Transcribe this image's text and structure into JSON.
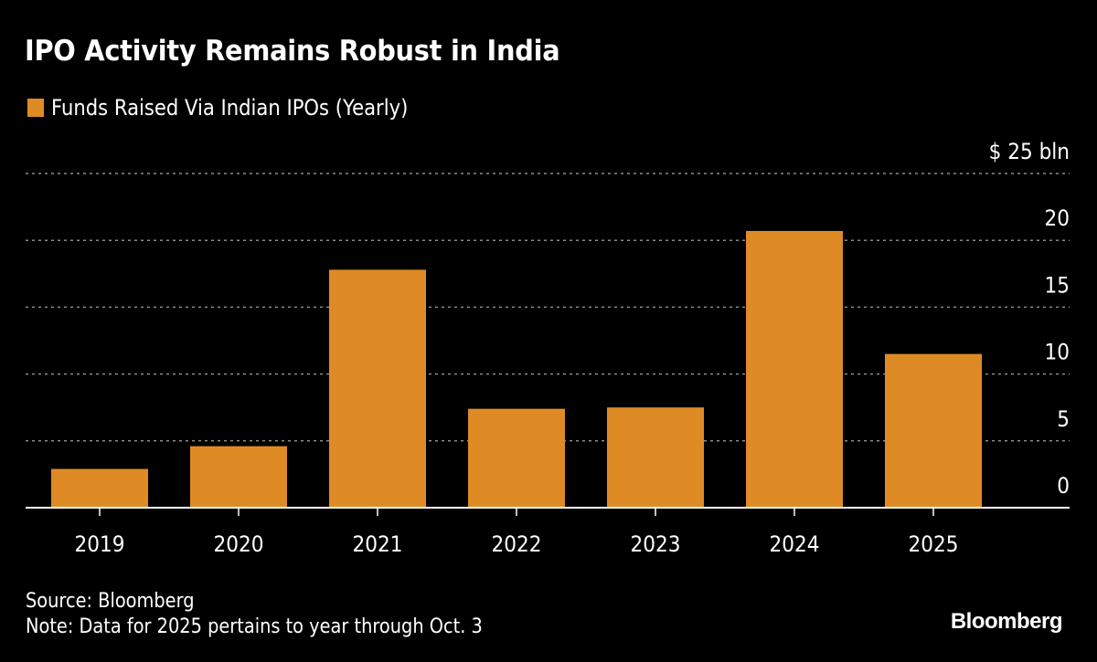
{
  "header": {
    "title": "IPO Activity Remains Robust in India"
  },
  "colors": {
    "background": "#000000",
    "bar": "#DE8B26",
    "grid": "#8a8a8a",
    "text": "#ffffff"
  },
  "chart_data": {
    "type": "bar",
    "title": "IPO Activity Remains Robust in India",
    "xlabel": "",
    "ylabel": "",
    "categories": [
      "2019",
      "2020",
      "2021",
      "2022",
      "2023",
      "2024",
      "2025"
    ],
    "series": [
      {
        "name": "Funds Raised Via Indian IPOs (Yearly)",
        "values": [
          2.9,
          4.6,
          17.8,
          7.4,
          7.5,
          20.7,
          11.5
        ]
      }
    ],
    "ylim": [
      0,
      25
    ],
    "yticks": [
      0,
      5,
      10,
      15,
      20,
      25
    ],
    "ytick_labels": [
      "0",
      "5",
      "10",
      "15",
      "20",
      "$ 25 bln"
    ],
    "y_unit": "$ bln",
    "grid": true,
    "grid_style": "dotted",
    "legend_position": "top-left",
    "yaxis_position": "right"
  },
  "legend": {
    "label": "Funds Raised Via Indian IPOs (Yearly)"
  },
  "footer": {
    "source": "Source: Bloomberg",
    "note": "Note: Data for 2025 pertains to year through Oct. 3"
  },
  "branding": {
    "logo_text": "Bloomberg"
  }
}
